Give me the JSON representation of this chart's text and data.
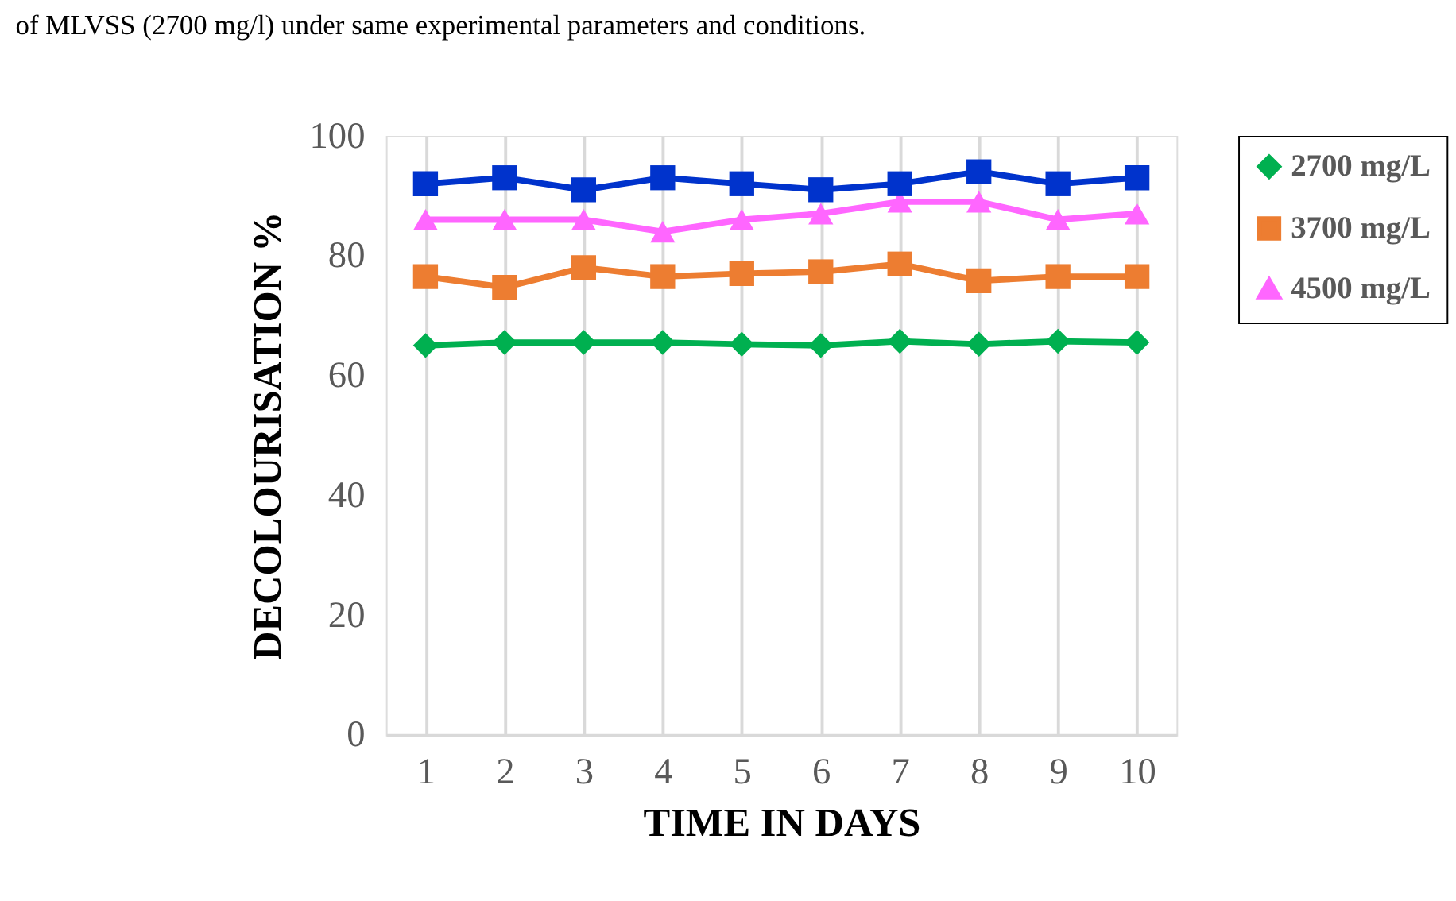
{
  "chart_data": {
    "type": "line",
    "xlabel": "TIME IN DAYS",
    "ylabel": "DECOLOURISATION %",
    "annotations": [
      "of MLVSS (2700 mg/l) under same experimental parameters and conditions."
    ],
    "categories": [
      "1",
      "2",
      "3",
      "4",
      "5",
      "6",
      "7",
      "8",
      "9",
      "10"
    ],
    "series": [
      {
        "name": "2700 mg/L",
        "color": "#00b050",
        "marker": "diamond",
        "values": [
          65,
          65.5,
          65.5,
          65.5,
          65.2,
          65,
          65.7,
          65.2,
          65.7,
          65.5
        ]
      },
      {
        "name": "3700 mg/L",
        "color": "#ed7d31",
        "marker": "square",
        "values": [
          76.5,
          74.7,
          78,
          76.5,
          77,
          77.3,
          78.6,
          75.8,
          76.5,
          76.5
        ]
      },
      {
        "name": "4500 mg/L",
        "color": "#ff66ff",
        "marker": "triangle",
        "values": [
          86,
          86,
          86,
          84,
          86,
          87,
          89,
          89,
          86,
          87
        ]
      },
      {
        "color": "#0033cc",
        "marker": "square",
        "values": [
          92,
          93,
          91,
          93,
          92,
          91,
          92,
          94,
          92,
          93
        ]
      }
    ],
    "ylim": [
      0,
      100
    ],
    "yticks": [
      0,
      20,
      40,
      60,
      80,
      100
    ],
    "grid": "x",
    "legend": "right",
    "line_style": "solid"
  }
}
